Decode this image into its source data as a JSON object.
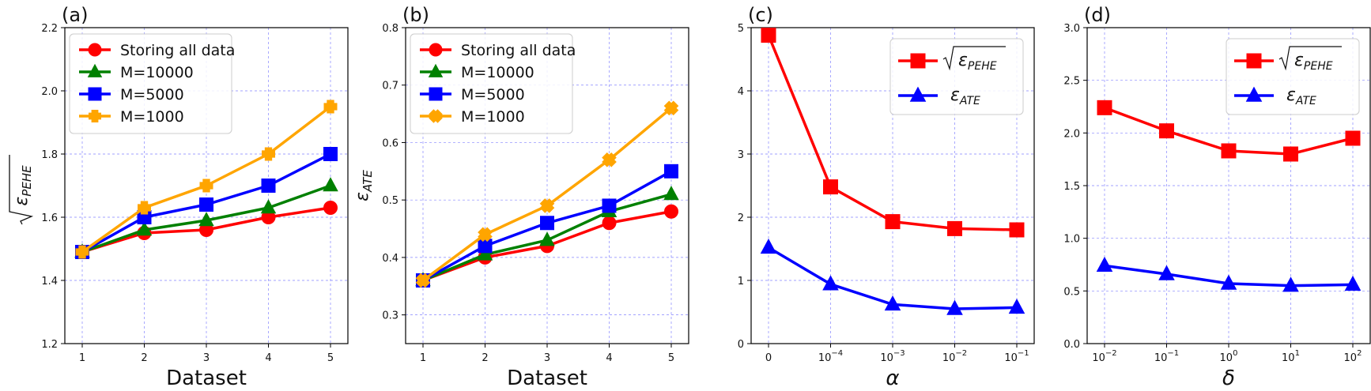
{
  "chart_data": [
    {
      "id": "a",
      "panel_label": "(a)",
      "type": "line",
      "xlabel": "Dataset",
      "ylabel": "√ε_PEHE",
      "ylabel_symbol": "ε",
      "ylabel_sub": "PEHE",
      "ylabel_sqrt": true,
      "x_tick_labels": [
        "1",
        "2",
        "3",
        "4",
        "5"
      ],
      "y_ticks": [
        "1.2",
        "1.4",
        "1.6",
        "1.8",
        "2.0",
        "2.2"
      ],
      "ylim": [
        1.2,
        2.2
      ],
      "legend_position": "upper-left",
      "series": [
        {
          "name": "Storing all data",
          "color": "#ff0000",
          "marker": "circle",
          "values": [
            1.49,
            1.55,
            1.56,
            1.6,
            1.63
          ]
        },
        {
          "name": "M=10000",
          "color": "#008000",
          "marker": "triangle",
          "values": [
            1.49,
            1.56,
            1.59,
            1.63,
            1.7
          ]
        },
        {
          "name": "M=5000",
          "color": "#0000ff",
          "marker": "square",
          "values": [
            1.49,
            1.6,
            1.64,
            1.7,
            1.8
          ]
        },
        {
          "name": "M=1000",
          "color": "#ffa500",
          "marker": "plus",
          "values": [
            1.49,
            1.63,
            1.7,
            1.8,
            1.95
          ]
        }
      ]
    },
    {
      "id": "b",
      "panel_label": "(b)",
      "type": "line",
      "xlabel": "Dataset",
      "ylabel": "ε_ATE",
      "ylabel_symbol": "ε",
      "ylabel_sub": "ATE",
      "ylabel_sqrt": false,
      "x_tick_labels": [
        "1",
        "2",
        "3",
        "4",
        "5"
      ],
      "y_ticks": [
        "0.3",
        "0.4",
        "0.5",
        "0.6",
        "0.7",
        "0.8"
      ],
      "ylim": [
        0.25,
        0.8
      ],
      "legend_position": "upper-left",
      "series": [
        {
          "name": "Storing all data",
          "color": "#ff0000",
          "marker": "circle",
          "values": [
            0.36,
            0.4,
            0.42,
            0.46,
            0.48
          ]
        },
        {
          "name": "M=10000",
          "color": "#008000",
          "marker": "triangle",
          "values": [
            0.36,
            0.405,
            0.43,
            0.48,
            0.51
          ]
        },
        {
          "name": "M=5000",
          "color": "#0000ff",
          "marker": "square",
          "values": [
            0.36,
            0.42,
            0.46,
            0.49,
            0.55
          ]
        },
        {
          "name": "M=1000",
          "color": "#ffa500",
          "marker": "x",
          "values": [
            0.36,
            0.44,
            0.49,
            0.57,
            0.66
          ]
        }
      ]
    },
    {
      "id": "c",
      "panel_label": "(c)",
      "type": "line",
      "xlabel": "α",
      "ylabel": "",
      "x_tick_labels": [
        {
          "base": "0",
          "exp": ""
        },
        {
          "base": "10",
          "exp": "−4"
        },
        {
          "base": "10",
          "exp": "−3"
        },
        {
          "base": "10",
          "exp": "−2"
        },
        {
          "base": "10",
          "exp": "−1"
        }
      ],
      "y_ticks": [
        "0",
        "1",
        "2",
        "3",
        "4",
        "5"
      ],
      "ylim": [
        0,
        5
      ],
      "legend_position": "upper-right",
      "series": [
        {
          "name": "√ε_PEHE",
          "symbol": "ε",
          "sub": "PEHE",
          "sqrt": true,
          "color": "#ff0000",
          "marker": "square",
          "values": [
            4.88,
            2.48,
            1.93,
            1.82,
            1.8
          ]
        },
        {
          "name": "ε_ATE",
          "symbol": "ε",
          "sub": "ATE",
          "sqrt": false,
          "color": "#0000ff",
          "marker": "triangle",
          "values": [
            1.52,
            0.94,
            0.62,
            0.55,
            0.57
          ]
        }
      ]
    },
    {
      "id": "d",
      "panel_label": "(d)",
      "type": "line",
      "xlabel": "δ",
      "ylabel": "",
      "x_tick_labels": [
        {
          "base": "10",
          "exp": "−2"
        },
        {
          "base": "10",
          "exp": "−1"
        },
        {
          "base": "10",
          "exp": "0"
        },
        {
          "base": "10",
          "exp": "1"
        },
        {
          "base": "10",
          "exp": "2"
        }
      ],
      "y_ticks": [
        "0.0",
        "0.5",
        "1.0",
        "1.5",
        "2.0",
        "2.5",
        "3.0"
      ],
      "ylim": [
        0,
        3
      ],
      "legend_position": "upper-right",
      "series": [
        {
          "name": "√ε_PEHE",
          "symbol": "ε",
          "sub": "PEHE",
          "sqrt": true,
          "color": "#ff0000",
          "marker": "square",
          "values": [
            2.24,
            2.02,
            1.83,
            1.8,
            1.95
          ]
        },
        {
          "name": "ε_ATE",
          "symbol": "ε",
          "sub": "ATE",
          "sqrt": false,
          "color": "#0000ff",
          "marker": "triangle",
          "values": [
            0.74,
            0.66,
            0.57,
            0.55,
            0.56
          ]
        }
      ]
    }
  ]
}
